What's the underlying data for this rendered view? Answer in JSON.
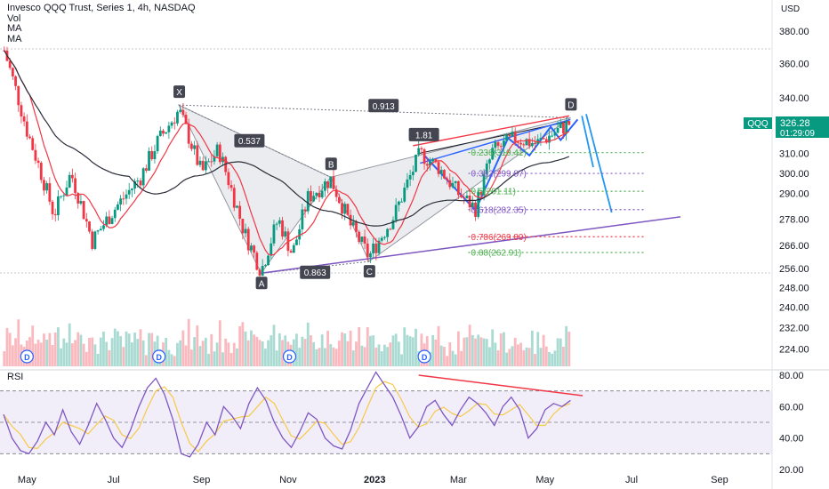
{
  "header": {
    "title": "Invesco QQQ Trust, Series 1, 4h, NASDAQ",
    "legend_items": [
      "Vol",
      "MA",
      "MA"
    ],
    "currency": "USD"
  },
  "price_tag": {
    "symbol": "QQQ",
    "price": "326.28",
    "countdown": "01:29:09",
    "color": "#089981"
  },
  "rsi_label": "RSI",
  "colors": {
    "up": "#089981",
    "down": "#f23645",
    "ma_fast": "#f23645",
    "ma_slow": "#2a2e39",
    "harmonic_fill": "#d1d4dc",
    "channel": "#f23645",
    "trend": "#7e57c2",
    "impulse": "#2962ff",
    "rsi": "#7e57c2",
    "rsi_ma": "#f7c948"
  },
  "chart_data": {
    "type": "candlestick",
    "symbol": "QQQ",
    "timeframe": "4h",
    "x_axis": [
      "May",
      "Jul",
      "Sep",
      "Nov",
      "2023",
      "Mar",
      "May",
      "Jul",
      "Sep"
    ],
    "y_axis": {
      "ticks": [
        224,
        232,
        240,
        248,
        256,
        266,
        278,
        290,
        300,
        310,
        326.28,
        340,
        360,
        380
      ],
      "ylim": [
        220,
        395
      ],
      "scale": "log"
    },
    "price_path": [
      {
        "date": "2022-04-15",
        "close": 368
      },
      {
        "date": "2022-05-01",
        "close": 322
      },
      {
        "date": "2022-05-20",
        "close": 280
      },
      {
        "date": "2022-06-01",
        "close": 300
      },
      {
        "date": "2022-06-16",
        "close": 268
      },
      {
        "date": "2022-07-01",
        "close": 282
      },
      {
        "date": "2022-07-20",
        "close": 298
      },
      {
        "date": "2022-08-01",
        "close": 316
      },
      {
        "date": "2022-08-16",
        "close": 333
      },
      {
        "date": "2022-09-01",
        "close": 300
      },
      {
        "date": "2022-09-13",
        "close": 312
      },
      {
        "date": "2022-10-01",
        "close": 272
      },
      {
        "date": "2022-10-13",
        "close": 255
      },
      {
        "date": "2022-10-25",
        "close": 278
      },
      {
        "date": "2022-11-04",
        "close": 262
      },
      {
        "date": "2022-11-15",
        "close": 288
      },
      {
        "date": "2022-12-01",
        "close": 297
      },
      {
        "date": "2022-12-15",
        "close": 275
      },
      {
        "date": "2022-12-28",
        "close": 261
      },
      {
        "date": "2023-01-15",
        "close": 280
      },
      {
        "date": "2023-02-02",
        "close": 310
      },
      {
        "date": "2023-02-15",
        "close": 303
      },
      {
        "date": "2023-03-01",
        "close": 290
      },
      {
        "date": "2023-03-13",
        "close": 283
      },
      {
        "date": "2023-03-25",
        "close": 311
      },
      {
        "date": "2023-04-10",
        "close": 318
      },
      {
        "date": "2023-04-25",
        "close": 315
      },
      {
        "date": "2023-05-10",
        "close": 322
      },
      {
        "date": "2023-05-19",
        "close": 326.28
      }
    ],
    "harmonic_pattern": {
      "points": [
        {
          "label": "X",
          "date": "2022-08-16",
          "price": 336
        },
        {
          "label": "A",
          "date": "2022-10-13",
          "price": 254
        },
        {
          "label": "B",
          "date": "2022-12-01",
          "price": 298
        },
        {
          "label": "C",
          "date": "2022-12-28",
          "price": 259
        },
        {
          "label": "D",
          "date": "2023-05-19",
          "price": 329
        }
      ],
      "ratios": [
        "0.537",
        "0.913",
        "0.863",
        "1.81"
      ]
    },
    "fib_levels": [
      {
        "label": "0.236(310.41)",
        "price": 310.41,
        "color": "#4caf50"
      },
      {
        "label": "0.382(299.87)",
        "price": 299.87,
        "color": "#7e57c2"
      },
      {
        "label": "0.5(291.11)",
        "price": 291.11,
        "color": "#4caf50"
      },
      {
        "label": "0.618(282.35)",
        "price": 282.35,
        "color": "#7e57c2"
      },
      {
        "label": "0.786(269.89)",
        "price": 269.89,
        "color": "#f23645"
      },
      {
        "label": "0.88(262.91)",
        "price": 262.91,
        "color": "#4caf50"
      }
    ],
    "rsi": {
      "ticks": [
        20,
        40,
        60,
        80
      ],
      "ylim": [
        20,
        85
      ],
      "bands": [
        30,
        50,
        70
      ],
      "series": [
        55,
        40,
        32,
        30,
        38,
        50,
        42,
        58,
        44,
        36,
        48,
        62,
        52,
        40,
        34,
        45,
        60,
        72,
        78,
        68,
        52,
        30,
        28,
        36,
        50,
        42,
        60,
        54,
        46,
        62,
        72,
        64,
        50,
        40,
        34,
        44,
        56,
        52,
        40,
        35,
        33,
        45,
        62,
        72,
        82,
        74,
        66,
        54,
        40,
        47,
        60,
        64,
        55,
        48,
        58,
        66,
        62,
        56,
        48,
        60,
        66,
        58,
        40,
        46,
        58,
        62,
        60,
        64
      ]
    },
    "event_markers": [
      {
        "label": "D",
        "date": "2022-05-01"
      },
      {
        "label": "D",
        "date": "2022-08-02"
      },
      {
        "label": "D",
        "date": "2022-11-02"
      },
      {
        "label": "D",
        "date": "2023-02-05"
      }
    ],
    "series": [
      {
        "name": "MA",
        "kind": "fast moving average"
      },
      {
        "name": "MA",
        "kind": "slow moving average"
      }
    ]
  }
}
